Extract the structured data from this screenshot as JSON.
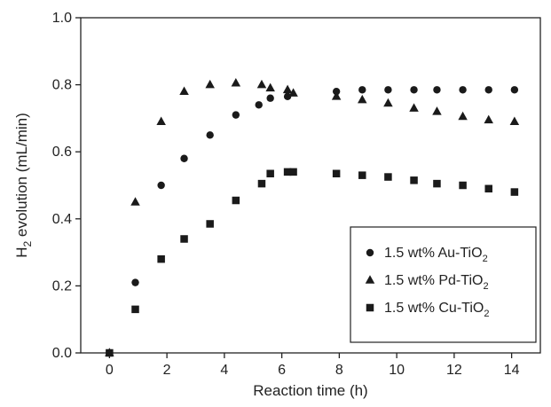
{
  "chart_data": {
    "type": "scatter",
    "xlabel": "Reaction time (h)",
    "ylabel": {
      "pre": "H",
      "sub": "2",
      "post": " evolution (mL/min)"
    },
    "xlim": [
      -1,
      15
    ],
    "ylim": [
      0,
      1
    ],
    "xticks": [
      0,
      2,
      4,
      6,
      8,
      10,
      12,
      14
    ],
    "yticks": [
      0.0,
      0.2,
      0.4,
      0.6,
      0.8,
      1.0
    ],
    "ytick_labels": [
      "0.0",
      "0.2",
      "0.4",
      "0.6",
      "0.8",
      "1.0"
    ],
    "grid": false,
    "legend_position": "bottom-right",
    "series": [
      {
        "name": {
          "pre": "1.5 wt% Au-TiO",
          "sub": "2"
        },
        "marker": "circle",
        "color": "#1a1a1a",
        "points": [
          [
            0,
            0.0
          ],
          [
            0.9,
            0.21
          ],
          [
            1.8,
            0.5
          ],
          [
            2.6,
            0.58
          ],
          [
            3.5,
            0.65
          ],
          [
            4.4,
            0.71
          ],
          [
            5.2,
            0.74
          ],
          [
            5.6,
            0.76
          ],
          [
            6.2,
            0.765
          ],
          [
            7.9,
            0.78
          ],
          [
            8.8,
            0.785
          ],
          [
            9.7,
            0.785
          ],
          [
            10.6,
            0.785
          ],
          [
            11.4,
            0.785
          ],
          [
            12.3,
            0.785
          ],
          [
            13.2,
            0.785
          ],
          [
            14.1,
            0.785
          ]
        ]
      },
      {
        "name": {
          "pre": "1.5 wt% Pd-TiO",
          "sub": "2"
        },
        "marker": "triangle",
        "color": "#1a1a1a",
        "points": [
          [
            0,
            0.0
          ],
          [
            0.9,
            0.45
          ],
          [
            1.8,
            0.69
          ],
          [
            2.6,
            0.78
          ],
          [
            3.5,
            0.8
          ],
          [
            4.4,
            0.805
          ],
          [
            5.3,
            0.8
          ],
          [
            5.6,
            0.79
          ],
          [
            6.2,
            0.785
          ],
          [
            6.4,
            0.775
          ],
          [
            7.9,
            0.765
          ],
          [
            8.8,
            0.755
          ],
          [
            9.7,
            0.745
          ],
          [
            10.6,
            0.73
          ],
          [
            11.4,
            0.72
          ],
          [
            12.3,
            0.705
          ],
          [
            13.2,
            0.695
          ],
          [
            14.1,
            0.69
          ]
        ]
      },
      {
        "name": {
          "pre": "1.5 wt% Cu-TiO",
          "sub": "2"
        },
        "marker": "square",
        "color": "#1a1a1a",
        "points": [
          [
            0,
            0.0
          ],
          [
            0.9,
            0.13
          ],
          [
            1.8,
            0.28
          ],
          [
            2.6,
            0.34
          ],
          [
            3.5,
            0.385
          ],
          [
            4.4,
            0.455
          ],
          [
            5.3,
            0.505
          ],
          [
            5.6,
            0.535
          ],
          [
            6.2,
            0.54
          ],
          [
            6.4,
            0.54
          ],
          [
            7.9,
            0.535
          ],
          [
            8.8,
            0.53
          ],
          [
            9.7,
            0.525
          ],
          [
            10.6,
            0.515
          ],
          [
            11.4,
            0.505
          ],
          [
            12.3,
            0.5
          ],
          [
            13.2,
            0.49
          ],
          [
            14.1,
            0.48
          ]
        ]
      }
    ]
  }
}
